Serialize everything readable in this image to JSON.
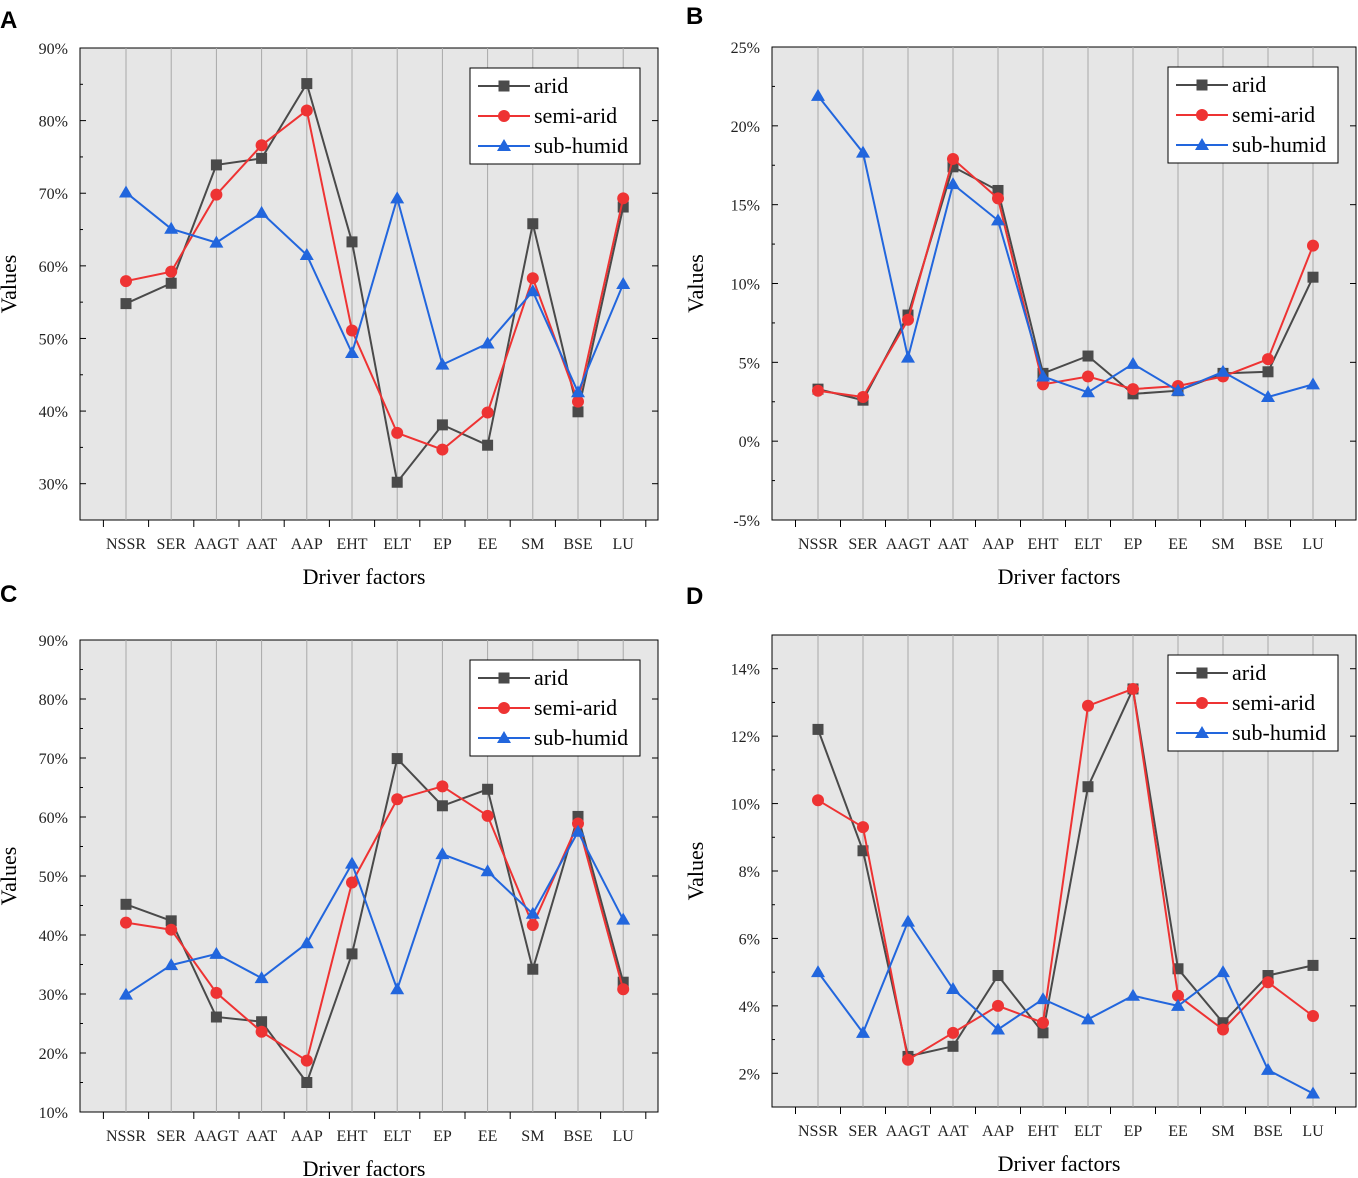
{
  "figure": {
    "colors": {
      "arid": "#4a4a4a",
      "semi-arid": "#ee3333",
      "sub-humid": "#2266dd",
      "plot_bg": "#e6e6e6"
    },
    "series_names": [
      "arid",
      "semi-arid",
      "sub-humid"
    ],
    "markers": {
      "arid": "square",
      "semi-arid": "circle",
      "sub-humid": "triangle"
    }
  },
  "chart_data": [
    {
      "panel": "A",
      "type": "line",
      "categories": [
        "NSSR",
        "SER",
        "AAGT",
        "AAT",
        "AAP",
        "EHT",
        "ELT",
        "EP",
        "EE",
        "SM",
        "BSE",
        "LU"
      ],
      "xlabel": "Driver  factors",
      "ylabel": "Values",
      "ylim": [
        25,
        90
      ],
      "yticks": [
        30,
        40,
        50,
        60,
        70,
        80,
        90
      ],
      "ytick_labels": [
        "30%",
        "40%",
        "50%",
        "60%",
        "70%",
        "80%",
        "90%"
      ],
      "legend_position": "top-right",
      "grid": "vertical",
      "series": [
        {
          "name": "arid",
          "values": [
            54.8,
            57.6,
            73.9,
            74.8,
            85.1,
            63.3,
            30.2,
            38.1,
            35.3,
            65.8,
            39.9,
            68.1
          ]
        },
        {
          "name": "semi-arid",
          "values": [
            57.9,
            59.2,
            69.8,
            76.6,
            81.4,
            51.1,
            37.0,
            34.7,
            39.8,
            58.3,
            41.3,
            69.3
          ]
        },
        {
          "name": "sub-humid",
          "values": [
            70.1,
            65.1,
            63.2,
            67.3,
            61.5,
            48.0,
            69.3,
            46.4,
            49.3,
            56.5,
            42.6,
            57.5
          ]
        }
      ]
    },
    {
      "panel": "B",
      "type": "line",
      "categories": [
        "NSSR",
        "SER",
        "AAGT",
        "AAT",
        "AAP",
        "EHT",
        "ELT",
        "EP",
        "EE",
        "SM",
        "BSE",
        "LU"
      ],
      "xlabel": "Driver factors",
      "ylabel": "Values",
      "ylim": [
        -5,
        25
      ],
      "yticks": [
        -5,
        0,
        5,
        10,
        15,
        20,
        25
      ],
      "ytick_labels": [
        "-5%",
        "0%",
        "5%",
        "10%",
        "15%",
        "20%",
        "25%"
      ],
      "legend_position": "top-right",
      "grid": "vertical",
      "series": [
        {
          "name": "arid",
          "values": [
            3.3,
            2.6,
            8.0,
            17.4,
            15.9,
            4.3,
            5.4,
            3.0,
            3.2,
            4.3,
            4.4,
            10.4
          ]
        },
        {
          "name": "semi-arid",
          "values": [
            3.2,
            2.8,
            7.7,
            17.9,
            15.4,
            3.6,
            4.1,
            3.3,
            3.5,
            4.1,
            5.2,
            12.4
          ]
        },
        {
          "name": "sub-humid",
          "values": [
            21.9,
            18.3,
            5.3,
            16.3,
            14.0,
            4.1,
            3.1,
            4.9,
            3.2,
            4.4,
            2.8,
            3.6
          ]
        }
      ]
    },
    {
      "panel": "C",
      "type": "line",
      "categories": [
        "NSSR",
        "SER",
        "AAGT",
        "AAT",
        "AAP",
        "EHT",
        "ELT",
        "EP",
        "EE",
        "SM",
        "BSE",
        "LU"
      ],
      "xlabel": "Driver factors",
      "ylabel": "Values",
      "ylim": [
        10,
        90
      ],
      "yticks": [
        10,
        20,
        30,
        40,
        50,
        60,
        70,
        80,
        90
      ],
      "ytick_labels": [
        "10%",
        "20%",
        "30%",
        "40%",
        "50%",
        "60%",
        "70%",
        "80%",
        "90%"
      ],
      "legend_position": "top-right",
      "grid": "vertical",
      "series": [
        {
          "name": "arid",
          "values": [
            45.2,
            42.4,
            26.1,
            25.3,
            15.0,
            36.8,
            69.9,
            61.9,
            64.7,
            34.2,
            60.1,
            32.0
          ]
        },
        {
          "name": "semi-arid",
          "values": [
            42.1,
            40.9,
            30.2,
            23.6,
            18.7,
            48.9,
            63.0,
            65.2,
            60.2,
            41.7,
            58.9,
            30.8
          ]
        },
        {
          "name": "sub-humid",
          "values": [
            29.9,
            34.9,
            36.8,
            32.7,
            38.6,
            52.1,
            30.8,
            53.7,
            50.8,
            43.6,
            57.5,
            42.6
          ]
        }
      ]
    },
    {
      "panel": "D",
      "type": "line",
      "categories": [
        "NSSR",
        "SER",
        "AAGT",
        "AAT",
        "AAP",
        "EHT",
        "ELT",
        "EP",
        "EE",
        "SM",
        "BSE",
        "LU"
      ],
      "xlabel": "Driver factors",
      "ylabel": "Values",
      "ylim": [
        1,
        15
      ],
      "yticks": [
        2,
        4,
        6,
        8,
        10,
        12,
        14
      ],
      "ytick_labels": [
        "2%",
        "4%",
        "6%",
        "8%",
        "10%",
        "12%",
        "14%"
      ],
      "legend_position": "top-right",
      "grid": "vertical",
      "series": [
        {
          "name": "arid",
          "values": [
            12.2,
            8.6,
            2.5,
            2.8,
            4.9,
            3.2,
            10.5,
            13.4,
            5.1,
            3.5,
            4.9,
            5.2
          ]
        },
        {
          "name": "semi-arid",
          "values": [
            10.1,
            9.3,
            2.4,
            3.2,
            4.0,
            3.5,
            12.9,
            13.4,
            4.3,
            3.3,
            4.7,
            3.7
          ]
        },
        {
          "name": "sub-humid",
          "values": [
            5.0,
            3.2,
            6.5,
            4.5,
            3.3,
            4.2,
            3.6,
            4.3,
            4.0,
            5.0,
            2.1,
            1.4
          ]
        }
      ]
    }
  ]
}
